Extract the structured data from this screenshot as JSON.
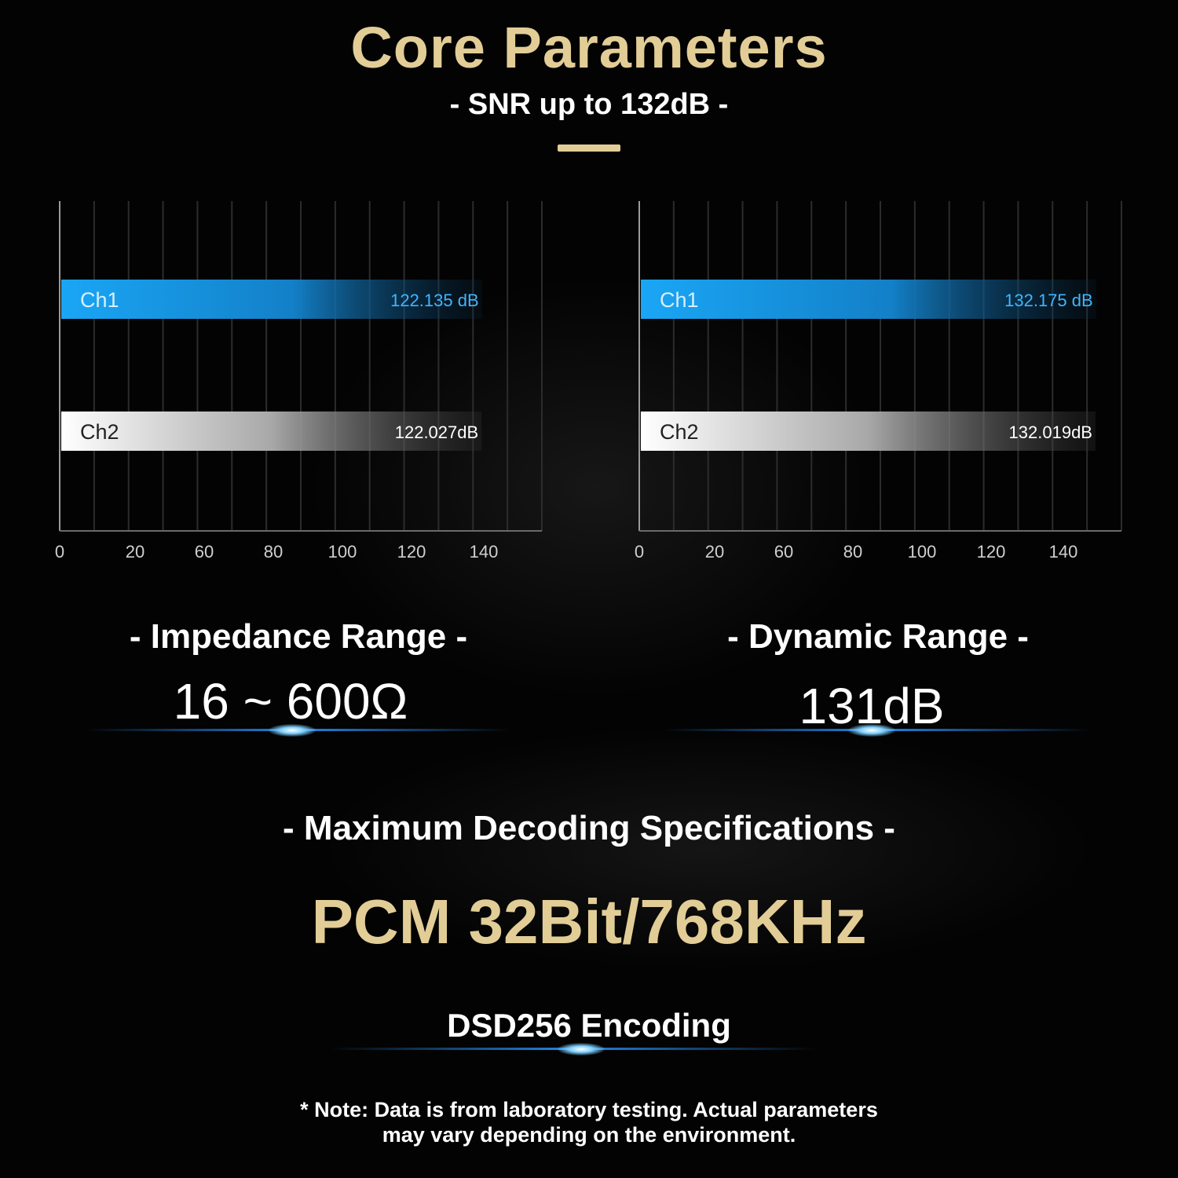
{
  "header": {
    "title": "Core Parameters",
    "subtitle": "- SNR up to 132dB -"
  },
  "chart_data": [
    {
      "type": "bar",
      "orientation": "horizontal",
      "categories": [
        "Ch1",
        "Ch2"
      ],
      "values": [
        122.135,
        122.027
      ],
      "value_labels": [
        "122.135 dB",
        "122.027dB"
      ],
      "x_ticks": [
        "0",
        "20",
        "60",
        "80",
        "100",
        "120",
        "140"
      ],
      "xlim": [
        0,
        140
      ],
      "grid": true,
      "colors": [
        "#1aa0f0",
        "#ffffff"
      ]
    },
    {
      "type": "bar",
      "orientation": "horizontal",
      "categories": [
        "Ch1",
        "Ch2"
      ],
      "values": [
        132.175,
        132.019
      ],
      "value_labels": [
        "132.175 dB",
        "132.019dB"
      ],
      "x_ticks": [
        "0",
        "20",
        "60",
        "80",
        "100",
        "120",
        "140"
      ],
      "xlim": [
        0,
        140
      ],
      "grid": true,
      "colors": [
        "#1aa0f0",
        "#ffffff"
      ]
    }
  ],
  "specs": {
    "impedance": {
      "label": "- Impedance Range -",
      "value": "16 ~ 600Ω"
    },
    "dynamic": {
      "label": "- Dynamic Range -",
      "value": "131dB"
    }
  },
  "decoding": {
    "label": "- Maximum Decoding Specifications -",
    "pcm": "PCM 32Bit/768KHz",
    "dsd": "DSD256 Encoding"
  },
  "note": {
    "line1": "* Note: Data is from laboratory testing. Actual parameters",
    "line2": "may vary depending on the environment."
  },
  "colors": {
    "gold": "#e2cd97",
    "blue": "#1aa0f0"
  }
}
